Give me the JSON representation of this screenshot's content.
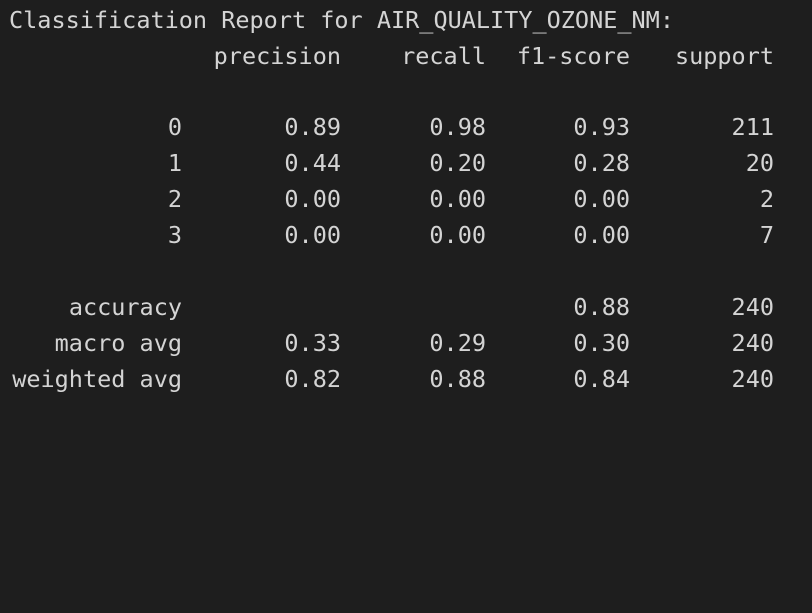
{
  "title": "Classification Report for AIR_QUALITY_OZONE_NM:",
  "headers": {
    "precision": "precision",
    "recall": "recall",
    "f1": "f1-score",
    "support": "support"
  },
  "class_rows": [
    {
      "label": "0",
      "precision": "0.89",
      "recall": "0.98",
      "f1": "0.93",
      "support": "211"
    },
    {
      "label": "1",
      "precision": "0.44",
      "recall": "0.20",
      "f1": "0.28",
      "support": "20"
    },
    {
      "label": "2",
      "precision": "0.00",
      "recall": "0.00",
      "f1": "0.00",
      "support": "2"
    },
    {
      "label": "3",
      "precision": "0.00",
      "recall": "0.00",
      "f1": "0.00",
      "support": "7"
    }
  ],
  "accuracy": {
    "label": "accuracy",
    "f1": "0.88",
    "support": "240"
  },
  "macro_avg": {
    "label": "macro avg",
    "precision": "0.33",
    "recall": "0.29",
    "f1": "0.30",
    "support": "240"
  },
  "weighted_avg": {
    "label": "weighted avg",
    "precision": "0.82",
    "recall": "0.88",
    "f1": "0.84",
    "support": "240"
  },
  "colors": {
    "background": "#1e1e1e",
    "text": "#d4d4d4"
  }
}
